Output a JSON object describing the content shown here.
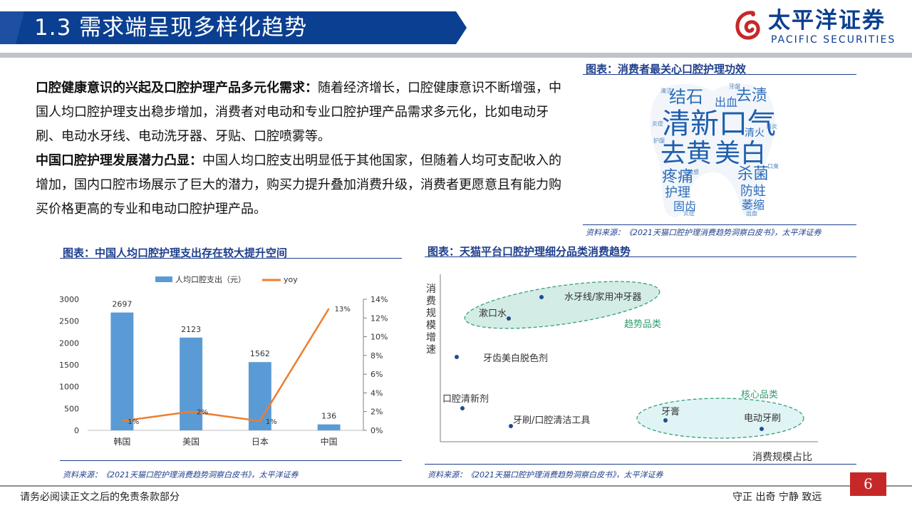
{
  "header": {
    "title": "1.3 需求端呈现多样化趋势",
    "logo_cn": "太平洋证券",
    "logo_en": "PACIFIC SECURITIES",
    "brand_color": "#0b3f91",
    "banner_color": "#0b3f91"
  },
  "body": {
    "para1_lead": "口腔健康意识的兴起及口腔护理产品多元化需求：",
    "para1_text": "随着经济增长，口腔健康意识不断增强，中国人均口腔护理支出稳步增加，消费者对电动和专业口腔护理产品需求多元化，比如电动牙刷、电动水牙线、电动洗牙器、牙贴、口腔喷雾等。",
    "para2_lead": "中国口腔护理发展潜力凸显：",
    "para2_text": "中国人均口腔支出明显低于其他国家，但随着人均可支配收入的增加，国内口腔市场展示了巨大的潜力，购买力提升叠加消费升级，消费者更愿意且有能力购买价格更高的专业和电动口腔护理产品。"
  },
  "wordcloud": {
    "title": "图表：消费者最关心口腔护理功效",
    "source": "资料来源：《2021天猫口腔护理消费趋势洞察白皮书》，太平洋证券",
    "shape": "tooth",
    "words": [
      "结石",
      "出血",
      "去渍",
      "清新口气",
      "去黄",
      "美白",
      "疼痛",
      "杀菌",
      "护理",
      "防蛀",
      "固齿",
      "萎缩",
      "清火",
      "敏感",
      "炎症",
      "消炎",
      "护龈",
      "清洁",
      "牙龈",
      "口臭"
    ]
  },
  "bar_chart": {
    "title": "图表：中国人均口腔护理支出存在较大提升空间",
    "source": "资料来源：《2021天猫口腔护理消费趋势洞察白皮书》，太平洋证券",
    "legend_bar": "人均口腔支出（元）",
    "legend_line": "yoy",
    "left_ticks": [
      "0",
      "500",
      "1000",
      "1500",
      "2000",
      "2500",
      "3000"
    ],
    "right_ticks": [
      "0%",
      "2%",
      "4%",
      "6%",
      "8%",
      "10%",
      "12%",
      "14%"
    ]
  },
  "scatter": {
    "title": "图表：天猫平台口腔护理细分品类消费趋势",
    "source": "资料来源：《2021天猫口腔护理消费趋势洞察白皮书》，太平洋证券",
    "y_axis_label": "消费规模增速",
    "x_axis_label": "消费规模占比",
    "group_trend": "趋势品类",
    "group_core": "核心品类",
    "points": [
      {
        "label": "水牙线/家用冲牙器"
      },
      {
        "label": "漱口水"
      },
      {
        "label": "牙齿美白脱色剂"
      },
      {
        "label": "口腔清新剂"
      },
      {
        "label": "牙刷/口腔清洁工具"
      },
      {
        "label": "牙膏"
      },
      {
        "label": "电动牙刷"
      }
    ]
  },
  "chart_data": {
    "type": "bar",
    "categories": [
      "韩国",
      "美国",
      "日本",
      "中国"
    ],
    "series": [
      {
        "name": "人均口腔支出（元）",
        "type": "bar",
        "values": [
          2697,
          2123,
          1562,
          136
        ],
        "data_labels": [
          "2697",
          "2123",
          "1562",
          "136"
        ],
        "color": "#5b9bd5",
        "axis": "left"
      },
      {
        "name": "yoy",
        "type": "line",
        "values": [
          1,
          2,
          1,
          13
        ],
        "data_labels": [
          "1%",
          "2%",
          "1%",
          "13%"
        ],
        "color": "#ed7d31",
        "axis": "right"
      }
    ],
    "ylim": [
      0,
      3000
    ],
    "y2lim": [
      0,
      14
    ],
    "legend": "top"
  },
  "footer": {
    "disclaimer": "请务必阅读正文之后的免责条款部分",
    "motto": "守正  出奇  宁静  致远",
    "page": "6"
  }
}
